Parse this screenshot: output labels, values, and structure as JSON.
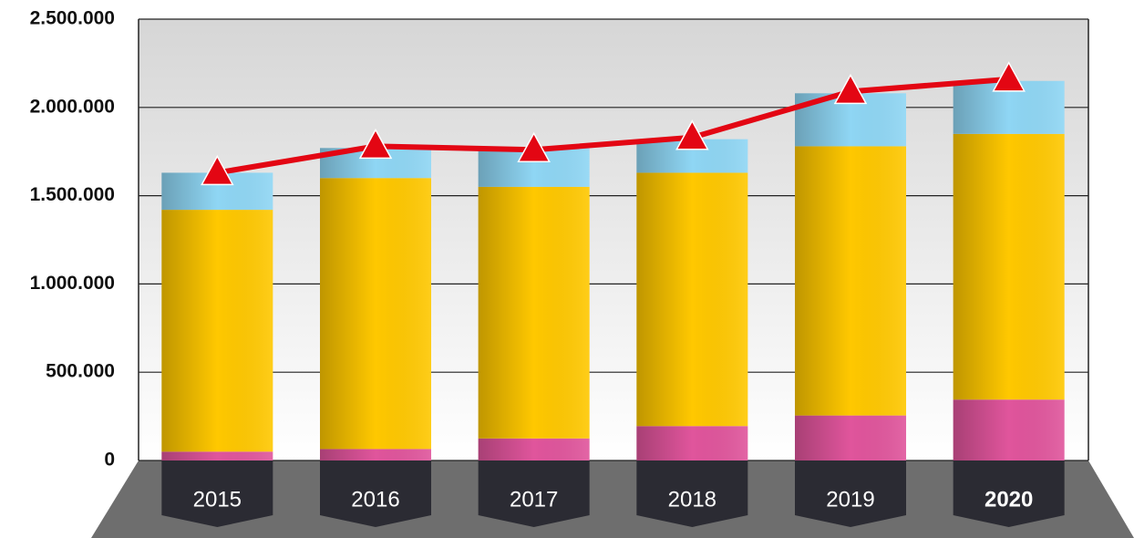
{
  "chart_data": {
    "type": "stacked_bar_line",
    "categories": [
      "2015",
      "2016",
      "2017",
      "2018",
      "2019",
      "2020"
    ],
    "series": [
      {
        "color": "#e0559c",
        "values": [
          50000,
          65000,
          125000,
          195000,
          255000,
          345000
        ]
      },
      {
        "color": "#ffc800",
        "values": [
          1370000,
          1535000,
          1425000,
          1435000,
          1525000,
          1505000
        ]
      },
      {
        "color": "#8fd6f4",
        "values": [
          210000,
          170000,
          220000,
          190000,
          300000,
          300000
        ]
      }
    ],
    "line": {
      "color": "#e30613",
      "values": [
        1630000,
        1780000,
        1760000,
        1830000,
        2090000,
        2160000
      ]
    },
    "ylim": [
      0,
      2500000
    ],
    "yticks": [
      0,
      {
        "value": 500000,
        "label": "500.000"
      },
      {
        "value": 1000000,
        "label": "1.000.000"
      },
      {
        "value": 1500000,
        "label": "1.500.000"
      },
      {
        "value": 2000000,
        "label": "2.000.000"
      },
      {
        "value": 2500000,
        "label": "2.500.000"
      }
    ],
    "grid": true
  }
}
